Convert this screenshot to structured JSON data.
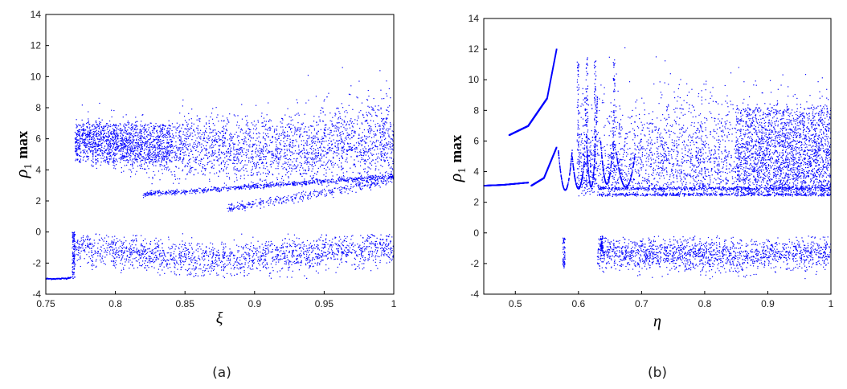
{
  "chart_data": [
    {
      "type": "scatter",
      "panel_label": "(a)",
      "xlabel": "ξ",
      "ylabel_symbol": "ρ",
      "ylabel_subscript": "1",
      "ylabel_suffix": "max",
      "xlim": [
        0.75,
        1.0
      ],
      "ylim": [
        -4,
        14
      ],
      "xticks": [
        0.75,
        0.8,
        0.85,
        0.9,
        0.95,
        1.0
      ],
      "xtick_labels": [
        "0.75",
        "0.8",
        "0.85",
        "0.9",
        "0.95",
        "1"
      ],
      "yticks": [
        -4,
        -2,
        0,
        2,
        4,
        6,
        8,
        10,
        12,
        14
      ],
      "ytick_labels": [
        "-4",
        "-2",
        "0",
        "2",
        "4",
        "6",
        "8",
        "10",
        "12",
        "14"
      ],
      "marker_color": "#0000ff",
      "series": [
        {
          "x": [
            0.75,
            0.76,
            0.765,
            0.768
          ],
          "y": [
            -3.0,
            -3.0,
            -2.97,
            -2.9
          ]
        },
        {
          "x": [
            0.771,
            0.78,
            0.8,
            0.83,
            0.86,
            0.9,
            0.93,
            0.96,
            0.99,
            1.0
          ],
          "y": [
            5.9,
            6.0,
            5.6,
            5.3,
            5.6,
            5.2,
            5.4,
            5.6,
            5.8,
            6.0
          ]
        },
        {
          "x": [
            0.82,
            0.85,
            0.88,
            0.91,
            0.94,
            0.97,
            1.0
          ],
          "y": [
            2.4,
            2.6,
            2.8,
            3.0,
            3.2,
            3.4,
            3.6
          ]
        },
        {
          "x": [
            0.771,
            0.8,
            0.83,
            0.86,
            0.9,
            0.93,
            0.96,
            1.0
          ],
          "y": [
            -1.0,
            -1.2,
            -1.5,
            -1.8,
            -1.6,
            -1.4,
            -1.2,
            -1.0
          ]
        }
      ]
    },
    {
      "type": "scatter",
      "panel_label": "(b)",
      "xlabel": "η",
      "ylabel_symbol": "ρ",
      "ylabel_subscript": "1",
      "ylabel_suffix": "max",
      "xlim": [
        0.45,
        1.0
      ],
      "ylim": [
        -4,
        14
      ],
      "xticks": [
        0.5,
        0.6,
        0.7,
        0.8,
        0.9,
        1.0
      ],
      "xtick_labels": [
        "0.5",
        "0.6",
        "0.7",
        "0.8",
        "0.9",
        "1"
      ],
      "yticks": [
        -4,
        -2,
        0,
        2,
        4,
        6,
        8,
        10,
        12,
        14
      ],
      "ytick_labels": [
        "-4",
        "-2",
        "0",
        "2",
        "4",
        "6",
        "8",
        "10",
        "12",
        "14"
      ],
      "marker_color": "#0000ff",
      "series": [
        {
          "x": [
            0.45,
            0.48,
            0.52
          ],
          "y": [
            3.1,
            3.15,
            3.3
          ]
        },
        {
          "x": [
            0.49,
            0.52,
            0.55,
            0.565
          ],
          "y": [
            6.4,
            7.0,
            8.8,
            12.0
          ]
        },
        {
          "x": [
            0.525,
            0.545,
            0.565
          ],
          "y": [
            3.1,
            3.6,
            5.6
          ]
        },
        {
          "x": [
            0.7,
            0.8,
            0.9,
            1.0
          ],
          "y": [
            4.2,
            4.3,
            4.2,
            4.4
          ]
        },
        {
          "x": [
            0.63,
            0.75,
            0.85,
            0.95,
            1.0
          ],
          "y": [
            -1.3,
            -1.4,
            -1.5,
            -1.3,
            -1.2
          ]
        }
      ]
    }
  ]
}
